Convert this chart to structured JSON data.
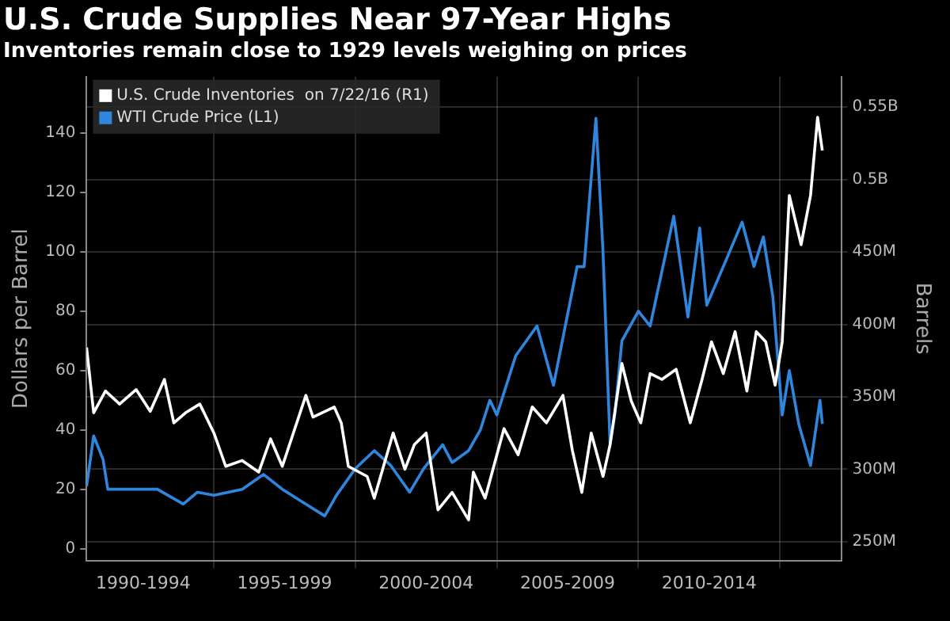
{
  "chart_data": {
    "type": "line",
    "title": "U.S. Crude Supplies Near 97-Year Highs",
    "subtitle": "Inventories remain close to 1929 levels weighing on prices",
    "ylabel": "Dollars per Barrel",
    "y2label": "Barrels",
    "series": [
      {
        "name": "U.S. Crude Inventories  on 7/22/16 (R1)",
        "color": "#ffffff",
        "axis": "y2",
        "x": [
          "1990-07",
          "1990-10",
          "1991-03",
          "1991-09",
          "1992-04",
          "1992-10",
          "1993-04",
          "1993-08",
          "1994-01",
          "1994-07",
          "1995-01",
          "1995-06",
          "1996-01",
          "1996-08",
          "1997-01",
          "1997-06",
          "1998-04",
          "1998-07",
          "1999-04",
          "1999-07",
          "1999-10",
          "2000-06",
          "2000-09",
          "2001-05",
          "2001-10",
          "2002-02",
          "2002-07",
          "2002-12",
          "2003-06",
          "2004-01",
          "2004-03",
          "2004-08",
          "2005-04",
          "2005-10",
          "2006-04",
          "2006-10",
          "2007-05",
          "2007-09",
          "2008-01",
          "2008-05",
          "2008-10",
          "2009-01",
          "2009-06",
          "2009-10",
          "2010-02",
          "2010-06",
          "2010-11",
          "2011-05",
          "2011-11",
          "2012-04",
          "2012-08",
          "2013-01",
          "2013-06",
          "2013-11",
          "2014-03",
          "2014-07",
          "2014-11",
          "2015-02",
          "2015-05",
          "2015-10",
          "2016-02",
          "2016-05",
          "2016-07"
        ],
        "values": [
          384000000,
          339000000,
          354000000,
          345000000,
          355000000,
          340000000,
          362000000,
          332000000,
          339000000,
          345000000,
          325000000,
          302000000,
          306000000,
          298000000,
          321000000,
          302000000,
          351000000,
          336000000,
          343000000,
          332000000,
          302000000,
          295000000,
          280000000,
          325000000,
          300000000,
          317000000,
          325000000,
          272000000,
          284000000,
          265000000,
          298000000,
          280000000,
          328000000,
          310000000,
          343000000,
          332000000,
          351000000,
          313000000,
          284000000,
          325000000,
          295000000,
          317000000,
          373000000,
          347000000,
          332000000,
          366000000,
          362000000,
          369000000,
          332000000,
          362000000,
          388000000,
          366000000,
          395000000,
          354000000,
          395000000,
          388000000,
          358000000,
          388000000,
          489000000,
          455000000,
          489000000,
          543000000,
          520000000
        ]
      },
      {
        "name": "WTI Crude Price (L1)",
        "color": "#2e86de",
        "axis": "y",
        "x": [
          "1990-07",
          "1990-10",
          "1991-02",
          "1991-04",
          "1992-01",
          "1993-01",
          "1993-12",
          "1994-06",
          "1995-01",
          "1996-01",
          "1996-10",
          "1997-06",
          "1998-04",
          "1998-12",
          "1999-05",
          "2000-01",
          "2000-09",
          "2001-04",
          "2001-12",
          "2002-06",
          "2003-02",
          "2003-06",
          "2004-01",
          "2004-06",
          "2004-10",
          "2005-01",
          "2005-09",
          "2006-06",
          "2007-01",
          "2007-06",
          "2007-11",
          "2008-02",
          "2008-07",
          "2008-10",
          "2009-01",
          "2009-03",
          "2009-06",
          "2010-01",
          "2010-06",
          "2011-04",
          "2011-10",
          "2012-03",
          "2012-06",
          "2013-01",
          "2013-09",
          "2014-02",
          "2014-06",
          "2014-10",
          "2015-02",
          "2015-05",
          "2015-09",
          "2016-02",
          "2016-06",
          "2016-07"
        ],
        "values": [
          21,
          38,
          30,
          20,
          20,
          20,
          15,
          19,
          18,
          20,
          25,
          20,
          15,
          11,
          18,
          27,
          33,
          28,
          19,
          27,
          35,
          29,
          33,
          40,
          50,
          45,
          65,
          75,
          55,
          75,
          95,
          95,
          145,
          100,
          35,
          45,
          70,
          80,
          75,
          112,
          78,
          108,
          82,
          95,
          110,
          95,
          105,
          85,
          45,
          60,
          42,
          28,
          50,
          42
        ]
      }
    ],
    "xlim": [
      "1990-07",
      "2017-03"
    ],
    "xticks": [
      {
        "value": "1992-07",
        "label": "1990-1994"
      },
      {
        "value": "1995-01",
        "label": null
      },
      {
        "value": "1997-07",
        "label": "1995-1999"
      },
      {
        "value": "2000-01",
        "label": null
      },
      {
        "value": "2002-07",
        "label": "2000-2004"
      },
      {
        "value": "2005-01",
        "label": null
      },
      {
        "value": "2007-07",
        "label": "2005-2009"
      },
      {
        "value": "2010-01",
        "label": null
      },
      {
        "value": "2012-07",
        "label": "2010-2014"
      },
      {
        "value": "2015-01",
        "label": null
      }
    ],
    "ylim": [
      -4,
      159
    ],
    "yticks": [
      0,
      20,
      40,
      60,
      80,
      100,
      120,
      140
    ],
    "y2lim": [
      237000000,
      571000000
    ],
    "y2ticks": [
      {
        "value": 250000000,
        "label": "250M"
      },
      {
        "value": 300000000,
        "label": "300M"
      },
      {
        "value": 350000000,
        "label": "350M"
      },
      {
        "value": 400000000,
        "label": "400M"
      },
      {
        "value": 450000000,
        "label": "450M"
      },
      {
        "value": 500000000,
        "label": "0.5B"
      },
      {
        "value": 550000000,
        "label": "0.55B"
      }
    ],
    "grid": true,
    "legend": "top left",
    "marker": "none",
    "line_style": "solid"
  }
}
